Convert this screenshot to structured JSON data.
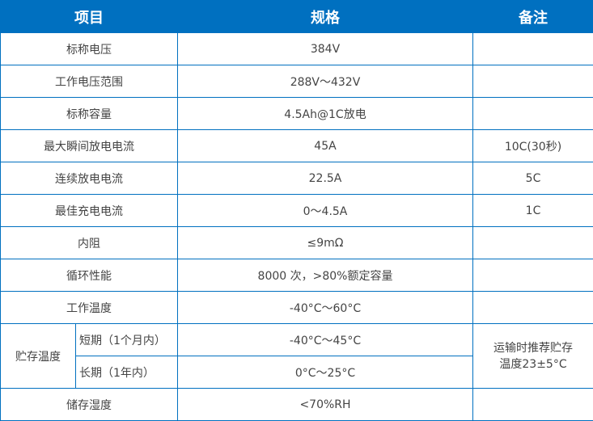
{
  "header": {
    "item": "项目",
    "spec": "规格",
    "note": "备注"
  },
  "colors": {
    "accent": "#0070c0"
  },
  "rows": [
    {
      "item": "标称电压",
      "spec": "384V",
      "note": ""
    },
    {
      "item": "工作电压范围",
      "spec": "288V～432V",
      "note": ""
    },
    {
      "item": "标称容量",
      "spec": "4.5Ah@1C放电",
      "note": ""
    },
    {
      "item": "最大瞬间放电电流",
      "spec": "45A",
      "note": "10C(30秒)"
    },
    {
      "item": "连续放电电流",
      "spec": "22.5A",
      "note": "5C"
    },
    {
      "item": "最佳充电电流",
      "spec": "0～4.5A",
      "note": "1C"
    },
    {
      "item": "内阻",
      "spec": "≤9mΩ",
      "note": ""
    },
    {
      "item": "循环性能",
      "spec": "8000 次，>80%额定容量",
      "note": ""
    },
    {
      "item": "工作温度",
      "spec": "-40°C～60°C",
      "note": ""
    }
  ],
  "storage": {
    "item": "贮存温度",
    "short_label": "短期（1个月内）",
    "short_spec": "-40°C～45°C",
    "long_label": "长期（1年内）",
    "long_spec": "0°C～25°C",
    "note_line1": "运输时推荐贮存",
    "note_line2": "温度23±5°C"
  },
  "humidity": {
    "item": "储存湿度",
    "spec": "<70%RH",
    "note": ""
  }
}
